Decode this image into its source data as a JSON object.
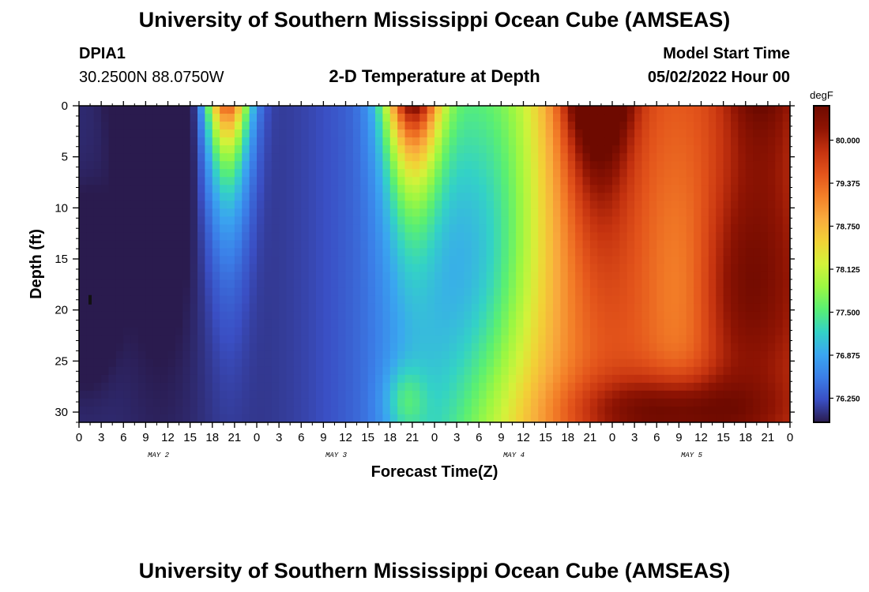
{
  "header": {
    "title": "University of Southern Mississippi Ocean Cube (AMSEAS)",
    "station_id": "DPIA1",
    "coordinates": "30.2500N  88.0750W",
    "chart_title": "2-D Temperature at Depth",
    "model_start_label": "Model Start Time",
    "model_start_value": "05/02/2022 Hour 00"
  },
  "footer": {
    "title": "University of Southern Mississippi Ocean Cube (AMSEAS)"
  },
  "chart_data": {
    "type": "heatmap",
    "title": "2-D Temperature at Depth",
    "xlabel": "Forecast Time(Z)",
    "ylabel": "Depth (ft)",
    "x_ticks": [
      "0",
      "3",
      "6",
      "9",
      "12",
      "15",
      "18",
      "21",
      "0",
      "3",
      "6",
      "9",
      "12",
      "15",
      "18",
      "21",
      "0",
      "3",
      "6",
      "9",
      "12",
      "15",
      "18",
      "21",
      "0",
      "3",
      "6",
      "9",
      "12",
      "15",
      "18",
      "21",
      "0"
    ],
    "x_day_labels": [
      "MAY 2",
      "MAY 3",
      "MAY 4",
      "MAY 5"
    ],
    "x_range_hours": [
      0,
      96
    ],
    "y_ticks": [
      "0",
      "5",
      "10",
      "15",
      "20",
      "25",
      "30"
    ],
    "y_range_ft": [
      0,
      31
    ],
    "colorbar": {
      "unit": "degF",
      "tick_labels": [
        "80.000",
        "79.375",
        "78.750",
        "78.125",
        "77.500",
        "76.875",
        "76.250"
      ],
      "tick_values": [
        80.0,
        79.375,
        78.75,
        78.125,
        77.5,
        76.875,
        76.25
      ],
      "min": 75.9,
      "max": 80.5,
      "colors": [
        "#2a1b4e",
        "#3a4fc4",
        "#3b7fe8",
        "#3aa6f0",
        "#33d2c6",
        "#59ef73",
        "#9bf742",
        "#d3f23a",
        "#f2d236",
        "#f8ab3d",
        "#f37f28",
        "#e3541b",
        "#c4320f",
        "#8f1403",
        "#6e0a00"
      ]
    },
    "grid": false,
    "legend": "colorbar right"
  }
}
